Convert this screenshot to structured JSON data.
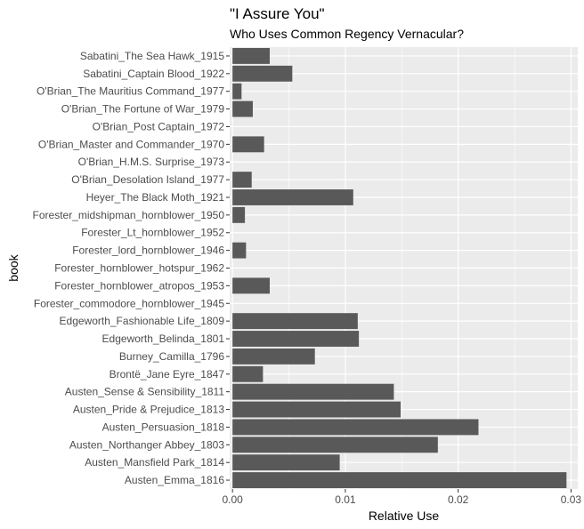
{
  "chart_data": {
    "type": "bar",
    "orientation": "horizontal",
    "title": "\"I Assure You\"",
    "subtitle": "Who Uses Common Regency Vernacular?",
    "xlabel": "Relative Use",
    "ylabel": "book",
    "xlim": [
      -0.00025,
      0.0306
    ],
    "xticks": [
      0.0,
      0.01,
      0.02,
      0.03
    ],
    "xtick_labels": [
      "0.00",
      "0.01",
      "0.02",
      "0.03"
    ],
    "grid": true,
    "colors": {
      "bar": "#595959",
      "panel": "#ebebeb",
      "grid_major": "#ffffff"
    },
    "categories": [
      "Sabatini_The Sea Hawk_1915",
      "Sabatini_Captain Blood_1922",
      "O'Brian_The Mauritius Command_1977",
      "O'Brian_The Fortune of War_1979",
      "O'Brian_Post Captain_1972",
      "O'Brian_Master and Commander_1970",
      "O'Brian_H.M.S. Surprise_1973",
      "O'Brian_Desolation Island_1977",
      "Heyer_The Black Moth_1921",
      "Forester_midshipman_hornblower_1950",
      "Forester_Lt_hornblower_1952",
      "Forester_lord_hornblower_1946",
      "Forester_hornblower_hotspur_1962",
      "Forester_hornblower_atropos_1953",
      "Forester_commodore_hornblower_1945",
      "Edgeworth_Fashionable Life_1809",
      "Edgeworth_Belinda_1801",
      "Burney_Camilla_1796",
      "Brontë_Jane Eyre_1847",
      "Austen_Sense & Sensibility_1811",
      "Austen_Pride & Prejudice_1813",
      "Austen_Persuasion_1818",
      "Austen_Northanger Abbey_1803",
      "Austen_Mansfield Park_1814",
      "Austen_Emma_1816"
    ],
    "values": [
      0.0033,
      0.0053,
      0.0008,
      0.0018,
      0.0,
      0.0028,
      0.0,
      0.0017,
      0.0107,
      0.0011,
      0.0,
      0.0012,
      0.0,
      0.0033,
      0.0,
      0.0111,
      0.0112,
      0.0073,
      0.0027,
      0.0143,
      0.0149,
      0.0218,
      0.0182,
      0.0095,
      0.0296
    ]
  }
}
